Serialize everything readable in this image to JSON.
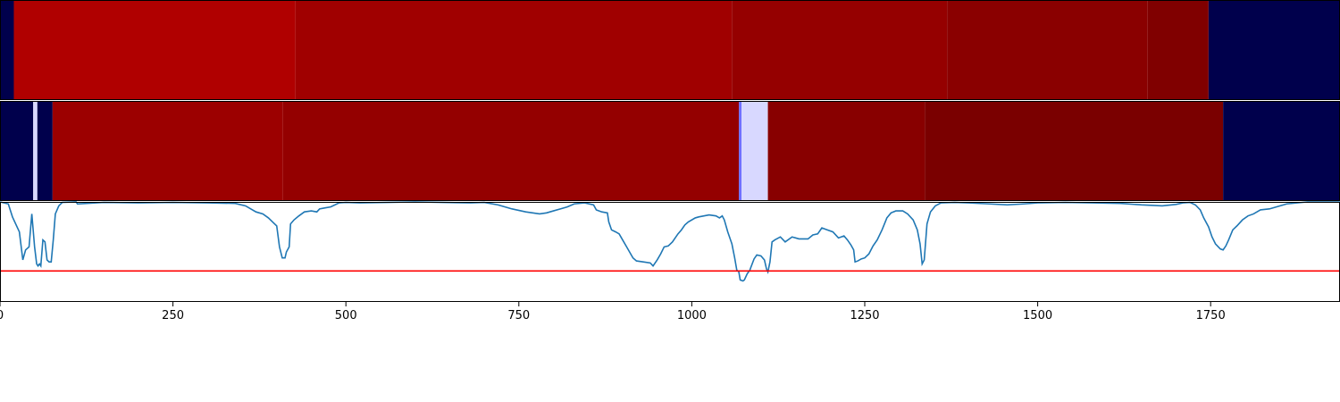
{
  "chart_data": {
    "type": "heatmap",
    "xlim": [
      0,
      1937
    ],
    "xticks": [
      0,
      250,
      500,
      750,
      1000,
      1250,
      1500,
      1750
    ],
    "xtick_labels": [
      "0",
      "250",
      "500",
      "750",
      "1000",
      "1250",
      "1500",
      "1750"
    ],
    "colormap": "seismic",
    "rows": [
      {
        "segments": [
          {
            "start": 0,
            "end": 20,
            "color": "#00004c"
          },
          {
            "start": 20,
            "end": 427,
            "color": "#b00000"
          },
          {
            "start": 427,
            "end": 1058,
            "color": "#a00000"
          },
          {
            "start": 1058,
            "end": 1369,
            "color": "#950000"
          },
          {
            "start": 1369,
            "end": 1659,
            "color": "#8a0000"
          },
          {
            "start": 1659,
            "end": 1747,
            "color": "#800000"
          },
          {
            "start": 1747,
            "end": 1937,
            "color": "#00004c"
          }
        ]
      },
      {
        "segments": [
          {
            "start": 0,
            "end": 48,
            "color": "#00004c"
          },
          {
            "start": 48,
            "end": 54,
            "color": "#d8d8ff"
          },
          {
            "start": 54,
            "end": 76,
            "color": "#00004c"
          },
          {
            "start": 76,
            "end": 409,
            "color": "#9c0000"
          },
          {
            "start": 409,
            "end": 1068,
            "color": "#940000"
          },
          {
            "start": 1068,
            "end": 1072,
            "color": "#7070ff"
          },
          {
            "start": 1072,
            "end": 1110,
            "color": "#d8d8ff"
          },
          {
            "start": 1110,
            "end": 1337,
            "color": "#880000"
          },
          {
            "start": 1337,
            "end": 1768,
            "color": "#7a0000"
          },
          {
            "start": 1768,
            "end": 1937,
            "color": "#00004c"
          }
        ]
      }
    ],
    "line": {
      "color": "#1f77b4",
      "ylim": [
        0,
        1
      ],
      "points": [
        [
          0,
          1.0
        ],
        [
          12,
          0.98
        ],
        [
          18,
          0.85
        ],
        [
          28,
          0.7
        ],
        [
          33,
          0.42
        ],
        [
          37,
          0.52
        ],
        [
          42,
          0.55
        ],
        [
          46,
          0.88
        ],
        [
          50,
          0.55
        ],
        [
          53,
          0.38
        ],
        [
          55,
          0.36
        ],
        [
          57,
          0.38
        ],
        [
          59,
          0.36
        ],
        [
          62,
          0.62
        ],
        [
          65,
          0.6
        ],
        [
          68,
          0.42
        ],
        [
          71,
          0.4
        ],
        [
          74,
          0.4
        ],
        [
          77,
          0.62
        ],
        [
          80,
          0.88
        ],
        [
          85,
          0.96
        ],
        [
          90,
          0.995
        ],
        [
          110,
          1.0
        ],
        [
          112,
          0.98
        ],
        [
          150,
          0.995
        ],
        [
          200,
          0.99
        ],
        [
          250,
          0.995
        ],
        [
          300,
          0.99
        ],
        [
          340,
          0.985
        ],
        [
          355,
          0.96
        ],
        [
          370,
          0.9
        ],
        [
          380,
          0.88
        ],
        [
          388,
          0.84
        ],
        [
          394,
          0.8
        ],
        [
          400,
          0.76
        ],
        [
          404,
          0.55
        ],
        [
          408,
          0.44
        ],
        [
          412,
          0.44
        ],
        [
          414,
          0.5
        ],
        [
          418,
          0.55
        ],
        [
          420,
          0.78
        ],
        [
          425,
          0.82
        ],
        [
          432,
          0.86
        ],
        [
          440,
          0.9
        ],
        [
          450,
          0.91
        ],
        [
          458,
          0.9
        ],
        [
          462,
          0.93
        ],
        [
          470,
          0.94
        ],
        [
          478,
          0.95
        ],
        [
          490,
          0.99
        ],
        [
          500,
          0.995
        ],
        [
          520,
          0.99
        ],
        [
          560,
          0.995
        ],
        [
          600,
          1.0
        ],
        [
          640,
          0.995
        ],
        [
          680,
          0.99
        ],
        [
          700,
          0.995
        ],
        [
          720,
          0.97
        ],
        [
          740,
          0.93
        ],
        [
          760,
          0.9
        ],
        [
          780,
          0.88
        ],
        [
          790,
          0.89
        ],
        [
          800,
          0.91
        ],
        [
          810,
          0.93
        ],
        [
          820,
          0.95
        ],
        [
          830,
          0.98
        ],
        [
          845,
          0.99
        ],
        [
          858,
          0.97
        ],
        [
          862,
          0.92
        ],
        [
          870,
          0.9
        ],
        [
          878,
          0.89
        ],
        [
          880,
          0.8
        ],
        [
          884,
          0.72
        ],
        [
          890,
          0.7
        ],
        [
          895,
          0.68
        ],
        [
          900,
          0.62
        ],
        [
          905,
          0.56
        ],
        [
          910,
          0.5
        ],
        [
          915,
          0.44
        ],
        [
          920,
          0.41
        ],
        [
          930,
          0.4
        ],
        [
          940,
          0.39
        ],
        [
          944,
          0.36
        ],
        [
          950,
          0.42
        ],
        [
          955,
          0.48
        ],
        [
          960,
          0.55
        ],
        [
          966,
          0.56
        ],
        [
          972,
          0.6
        ],
        [
          980,
          0.68
        ],
        [
          985,
          0.72
        ],
        [
          990,
          0.77
        ],
        [
          995,
          0.8
        ],
        [
          1005,
          0.84
        ],
        [
          1010,
          0.85
        ],
        [
          1025,
          0.87
        ],
        [
          1035,
          0.86
        ],
        [
          1040,
          0.84
        ],
        [
          1044,
          0.86
        ],
        [
          1047,
          0.82
        ],
        [
          1052,
          0.7
        ],
        [
          1058,
          0.58
        ],
        [
          1062,
          0.44
        ],
        [
          1065,
          0.32
        ],
        [
          1068,
          0.3
        ],
        [
          1070,
          0.22
        ],
        [
          1074,
          0.21
        ],
        [
          1076,
          0.22
        ],
        [
          1080,
          0.28
        ],
        [
          1084,
          0.32
        ],
        [
          1090,
          0.43
        ],
        [
          1094,
          0.47
        ],
        [
          1100,
          0.46
        ],
        [
          1105,
          0.42
        ],
        [
          1108,
          0.33
        ],
        [
          1110,
          0.3
        ],
        [
          1113,
          0.4
        ],
        [
          1116,
          0.6
        ],
        [
          1120,
          0.62
        ],
        [
          1128,
          0.65
        ],
        [
          1135,
          0.6
        ],
        [
          1145,
          0.65
        ],
        [
          1155,
          0.63
        ],
        [
          1168,
          0.63
        ],
        [
          1175,
          0.67
        ],
        [
          1182,
          0.68
        ],
        [
          1188,
          0.74
        ],
        [
          1196,
          0.72
        ],
        [
          1204,
          0.7
        ],
        [
          1212,
          0.64
        ],
        [
          1220,
          0.66
        ],
        [
          1225,
          0.62
        ],
        [
          1230,
          0.57
        ],
        [
          1234,
          0.52
        ],
        [
          1236,
          0.4
        ],
        [
          1240,
          0.41
        ],
        [
          1245,
          0.43
        ],
        [
          1250,
          0.44
        ],
        [
          1256,
          0.48
        ],
        [
          1262,
          0.56
        ],
        [
          1268,
          0.62
        ],
        [
          1275,
          0.72
        ],
        [
          1282,
          0.84
        ],
        [
          1288,
          0.89
        ],
        [
          1295,
          0.91
        ],
        [
          1305,
          0.91
        ],
        [
          1312,
          0.88
        ],
        [
          1320,
          0.82
        ],
        [
          1326,
          0.72
        ],
        [
          1330,
          0.58
        ],
        [
          1333,
          0.38
        ],
        [
          1336,
          0.42
        ],
        [
          1340,
          0.78
        ],
        [
          1345,
          0.9
        ],
        [
          1352,
          0.96
        ],
        [
          1360,
          0.99
        ],
        [
          1380,
          0.995
        ],
        [
          1400,
          0.99
        ],
        [
          1430,
          0.98
        ],
        [
          1456,
          0.97
        ],
        [
          1480,
          0.98
        ],
        [
          1500,
          0.99
        ],
        [
          1540,
          0.995
        ],
        [
          1580,
          0.99
        ],
        [
          1620,
          0.985
        ],
        [
          1650,
          0.97
        ],
        [
          1680,
          0.96
        ],
        [
          1700,
          0.975
        ],
        [
          1710,
          0.99
        ],
        [
          1720,
          0.995
        ],
        [
          1728,
          0.97
        ],
        [
          1735,
          0.92
        ],
        [
          1740,
          0.84
        ],
        [
          1747,
          0.75
        ],
        [
          1752,
          0.65
        ],
        [
          1757,
          0.58
        ],
        [
          1764,
          0.53
        ],
        [
          1768,
          0.52
        ],
        [
          1772,
          0.56
        ],
        [
          1776,
          0.62
        ],
        [
          1782,
          0.72
        ],
        [
          1788,
          0.76
        ],
        [
          1796,
          0.82
        ],
        [
          1804,
          0.86
        ],
        [
          1812,
          0.88
        ],
        [
          1822,
          0.92
        ],
        [
          1835,
          0.93
        ],
        [
          1845,
          0.95
        ],
        [
          1860,
          0.98
        ],
        [
          1875,
          0.99
        ],
        [
          1890,
          1.0
        ],
        [
          1937,
          1.0
        ]
      ]
    },
    "threshold": {
      "value": 0.31,
      "color": "#ff0000"
    }
  }
}
